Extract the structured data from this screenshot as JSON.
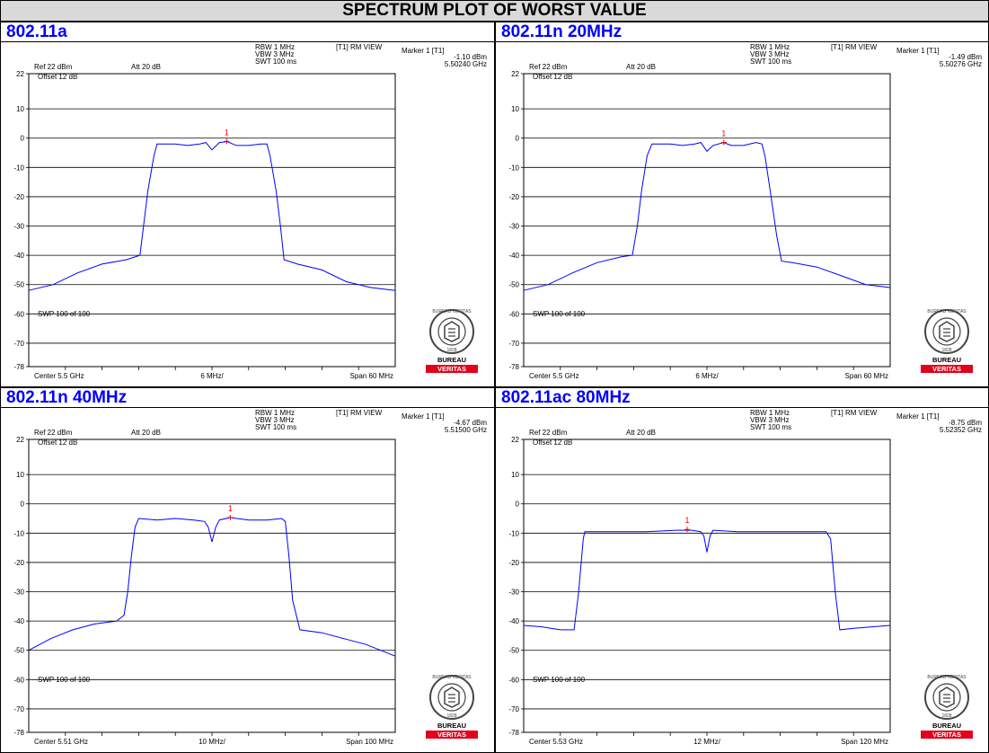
{
  "title": "SPECTRUM PLOT OF WORST VALUE",
  "panels": [
    {
      "label": "802.11a",
      "info": {
        "rbw": "RBW 1 MHz",
        "vbw": "VBW 3 MHz",
        "swt": "SWT 100 ms",
        "trace": "[T1] RM VIEW",
        "marker": "Marker 1 [T1]",
        "marker_level": "-1.10 dBm",
        "marker_freq": "5.50240 GHz",
        "ref": "Ref 22 dBm",
        "att": "Att 20 dB",
        "offset": "Offset 12 dB",
        "swp": "SWP 100 of 100",
        "center": "Center 5.5 GHz",
        "div": "6 MHz/",
        "span": "Span 60 MHz",
        "marker_id": "1"
      }
    },
    {
      "label": "802.11n 20MHz",
      "info": {
        "rbw": "RBW 1 MHz",
        "vbw": "VBW 3 MHz",
        "swt": "SWT 100 ms",
        "trace": "[T1] RM VIEW",
        "marker": "Marker 1 [T1]",
        "marker_level": "-1.49 dBm",
        "marker_freq": "5.50276 GHz",
        "ref": "Ref 22 dBm",
        "att": "Att 20 dB",
        "offset": "Offset 12 dB",
        "swp": "SWP 100 of 100",
        "center": "Center 5.5 GHz",
        "div": "6 MHz/",
        "span": "Span 60 MHz",
        "marker_id": "1"
      }
    },
    {
      "label": "802.11n 40MHz",
      "info": {
        "rbw": "RBW 1 MHz",
        "vbw": "VBW 3 MHz",
        "swt": "SWT 100 ms",
        "trace": "[T1] RM VIEW",
        "marker": "Marker 1 [T1]",
        "marker_level": "-4.67 dBm",
        "marker_freq": "5.51500 GHz",
        "ref": "Ref 22 dBm",
        "att": "Att 20 dB",
        "offset": "Offset 12 dB",
        "swp": "SWP 100 of 100",
        "center": "Center 5.51 GHz",
        "div": "10 MHz/",
        "span": "Span 100 MHz",
        "marker_id": "1"
      }
    },
    {
      "label": "802.11ac 80MHz",
      "info": {
        "rbw": "RBW 1 MHz",
        "vbw": "VBW 3 MHz",
        "swt": "SWT 100 ms",
        "trace": "[T1] RM VIEW",
        "marker": "Marker 1 [T1]",
        "marker_level": "-8.75 dBm",
        "marker_freq": "5.52352 GHz",
        "ref": "Ref 22 dBm",
        "att": "Att 20 dB",
        "offset": "Offset 12 dB",
        "swp": "SWP 100 of 100",
        "center": "Center 5.53 GHz",
        "div": "12 MHz/",
        "span": "Span 120 MHz",
        "marker_id": "1"
      }
    }
  ],
  "logo": {
    "top": "BUREAU",
    "bottom": "VERITAS",
    "year": "1828",
    "ring": "BUREAU VERITAS"
  },
  "colors": {
    "trace": "#0000ff",
    "marker": "#ff0000",
    "grid": "#000000",
    "header_text": "#0000ff",
    "title_bg": "#d9d9d9",
    "logo_red": "#e2001a"
  },
  "chart_data": [
    {
      "type": "line",
      "ylim": [
        -78,
        22
      ],
      "yticks": [
        22,
        10,
        0,
        -10,
        -20,
        -30,
        -40,
        -50,
        -60,
        -70,
        -78
      ],
      "xlim": [
        5.47,
        5.53
      ],
      "x_unit": "GHz",
      "marker": {
        "x": 5.5024,
        "y": -1.1
      },
      "series": [
        {
          "x": [
            5.47,
            5.474,
            5.478,
            5.482,
            5.486,
            5.4882,
            5.4888,
            5.4895,
            5.4905,
            5.491,
            5.494,
            5.496,
            5.498,
            5.499,
            5.5,
            5.5012,
            5.5025,
            5.504,
            5.506,
            5.508,
            5.509,
            5.5095,
            5.5105,
            5.5112,
            5.5118,
            5.514,
            5.518,
            5.522,
            5.526,
            5.53
          ],
          "y": [
            -52,
            -50,
            -46,
            -43,
            -41.5,
            -40,
            -30,
            -18,
            -6,
            -2,
            -2,
            -2.5,
            -2,
            -1.5,
            -4,
            -1.5,
            -1.2,
            -2.5,
            -2.5,
            -2,
            -2,
            -6,
            -18,
            -30,
            -41.5,
            -43,
            -45,
            -49,
            -51,
            -52
          ]
        }
      ]
    },
    {
      "type": "line",
      "ylim": [
        -78,
        22
      ],
      "yticks": [
        22,
        10,
        0,
        -10,
        -20,
        -30,
        -40,
        -50,
        -60,
        -70,
        -78
      ],
      "xlim": [
        5.47,
        5.53
      ],
      "x_unit": "GHz",
      "marker": {
        "x": 5.50276,
        "y": -1.49
      },
      "series": [
        {
          "x": [
            5.47,
            5.474,
            5.478,
            5.482,
            5.486,
            5.4878,
            5.4886,
            5.4893,
            5.4902,
            5.491,
            5.494,
            5.496,
            5.498,
            5.499,
            5.5,
            5.501,
            5.5027,
            5.504,
            5.506,
            5.508,
            5.509,
            5.5095,
            5.5105,
            5.5114,
            5.5122,
            5.514,
            5.518,
            5.522,
            5.526,
            5.53
          ],
          "y": [
            -52,
            -50,
            -46,
            -42.5,
            -40.5,
            -40,
            -30,
            -18,
            -6,
            -2,
            -2,
            -2.5,
            -2,
            -1.5,
            -4.5,
            -2.5,
            -1.5,
            -2.5,
            -2.5,
            -1.5,
            -2,
            -6,
            -20,
            -33,
            -42,
            -42.5,
            -44,
            -47,
            -50,
            -51
          ]
        }
      ]
    },
    {
      "type": "line",
      "ylim": [
        -78,
        22
      ],
      "yticks": [
        22,
        10,
        0,
        -10,
        -20,
        -30,
        -40,
        -50,
        -60,
        -70,
        -78
      ],
      "xlim": [
        5.46,
        5.56
      ],
      "x_unit": "GHz",
      "marker": {
        "x": 5.515,
        "y": -4.67
      },
      "series": [
        {
          "x": [
            5.46,
            5.466,
            5.472,
            5.478,
            5.484,
            5.486,
            5.487,
            5.488,
            5.489,
            5.49,
            5.495,
            5.5,
            5.505,
            5.508,
            5.509,
            5.51,
            5.511,
            5.512,
            5.515,
            5.52,
            5.525,
            5.529,
            5.53,
            5.531,
            5.532,
            5.534,
            5.54,
            5.546,
            5.552,
            5.56
          ],
          "y": [
            -50,
            -46,
            -43,
            -41,
            -40,
            -38,
            -30,
            -18,
            -8,
            -5,
            -5.5,
            -5,
            -5.5,
            -6,
            -8,
            -13,
            -8,
            -5.5,
            -4.7,
            -5.5,
            -5.5,
            -5,
            -6,
            -18,
            -33,
            -43,
            -44,
            -46,
            -48,
            -52
          ]
        }
      ]
    },
    {
      "type": "line",
      "ylim": [
        -78,
        22
      ],
      "yticks": [
        22,
        10,
        0,
        -10,
        -20,
        -30,
        -40,
        -50,
        -60,
        -70,
        -78
      ],
      "xlim": [
        5.47,
        5.59
      ],
      "x_unit": "GHz",
      "marker": {
        "x": 5.52352,
        "y": -8.75
      },
      "series": [
        {
          "x": [
            5.47,
            5.476,
            5.482,
            5.4865,
            5.488,
            5.4895,
            5.49,
            5.5,
            5.51,
            5.52,
            5.525,
            5.528,
            5.529,
            5.53,
            5.531,
            5.532,
            5.54,
            5.55,
            5.56,
            5.569,
            5.5705,
            5.572,
            5.5735,
            5.578,
            5.584,
            5.59
          ],
          "y": [
            -41.5,
            -42,
            -43,
            -43,
            -30,
            -12,
            -9.5,
            -9.5,
            -9.5,
            -9,
            -9,
            -9.5,
            -11,
            -16.5,
            -11,
            -9,
            -9.5,
            -9.5,
            -9.5,
            -9.5,
            -12,
            -30,
            -43,
            -42.5,
            -42,
            -41.5
          ]
        }
      ]
    }
  ]
}
